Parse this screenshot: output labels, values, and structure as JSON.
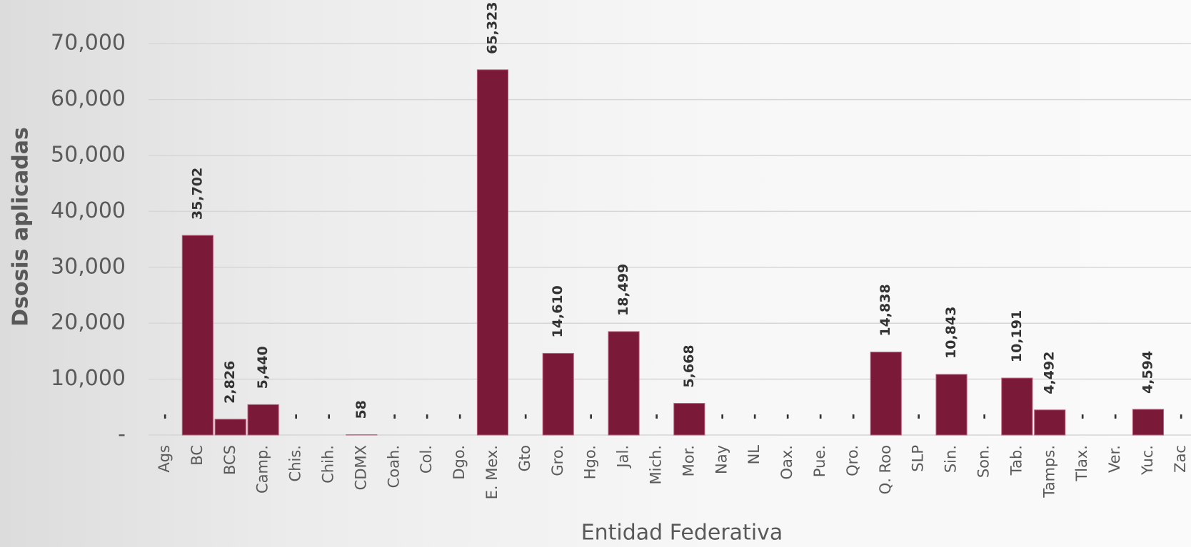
{
  "chart_data": {
    "type": "bar",
    "y_label": "Dsosis aplicadas",
    "x_label": "Entidad Federativa",
    "categories": [
      "Ags",
      "BC",
      "BCS",
      "Camp.",
      "Chis.",
      "Chih.",
      "CDMX",
      "Coah.",
      "Col.",
      "Dgo.",
      "E. Mex.",
      "Gto",
      "Gro.",
      "Hgo.",
      "Jal.",
      "Mich.",
      "Mor.",
      "Nay",
      "NL",
      "Oax.",
      "Pue.",
      "Qro.",
      "Q. Roo",
      "SLP",
      "Sin.",
      "Son.",
      "Tab.",
      "Tamps.",
      "Tlax.",
      "Ver.",
      "Yuc.",
      "Zac"
    ],
    "values": [
      0,
      35702,
      2826,
      5440,
      0,
      0,
      58,
      0,
      0,
      0,
      65323,
      0,
      14610,
      0,
      18499,
      0,
      5668,
      0,
      0,
      0,
      0,
      0,
      14838,
      0,
      10843,
      0,
      10191,
      4492,
      0,
      0,
      4594,
      0
    ],
    "value_labels": [
      "-",
      "35,702",
      "2,826",
      "5,440",
      "-",
      "-",
      "58",
      "-",
      "-",
      "-",
      "65,323",
      "-",
      "14,610",
      "-",
      "18,499",
      "-",
      "5,668",
      "-",
      "-",
      "-",
      "-",
      "-",
      "14,838",
      "-",
      "10,843",
      "-",
      "10,191",
      "4,492",
      "-",
      "-",
      "4,594",
      "-"
    ],
    "color": "#7a1a38",
    "ylim": [
      0,
      77800
    ],
    "yticks": [
      {
        "value": 0,
        "label": "-"
      },
      {
        "value": 10000,
        "label": "10,000"
      },
      {
        "value": 20000,
        "label": "20,000"
      },
      {
        "value": 30000,
        "label": "30,000"
      },
      {
        "value": 40000,
        "label": "40,000"
      },
      {
        "value": 50000,
        "label": "50,000"
      },
      {
        "value": 60000,
        "label": "60,000"
      },
      {
        "value": 70000,
        "label": "70,000"
      }
    ],
    "grid": true
  }
}
